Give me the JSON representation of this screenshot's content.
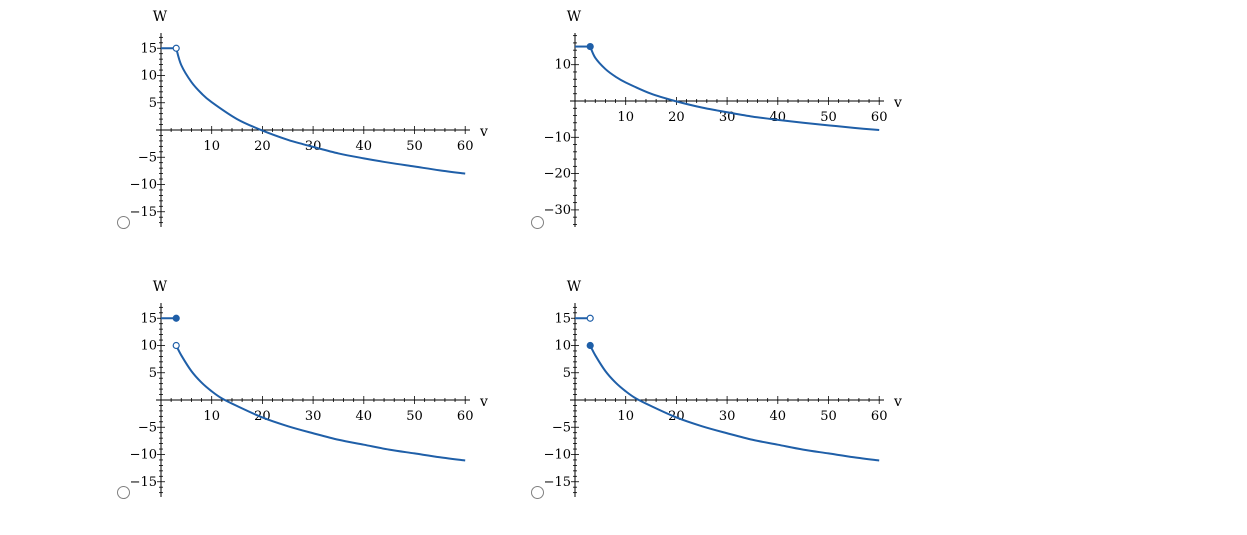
{
  "colors": {
    "curve": "#1f5fa8",
    "axis": "#000000",
    "open_fill": "#ffffff"
  },
  "options": [
    {
      "chart_data": {
        "type": "line",
        "xlabel": "v",
        "ylabel": "W",
        "xlim": [
          0,
          60
        ],
        "ylim": [
          -17,
          17
        ],
        "xticks": [
          10,
          20,
          30,
          40,
          50,
          60
        ],
        "yticks": [
          -15,
          -10,
          -5,
          5,
          10,
          15
        ],
        "series": [
          {
            "x": [
              0,
              3
            ],
            "y": [
              15,
              15
            ]
          },
          {
            "x": [
              3,
              4,
              6,
              8,
              10,
              15,
              20,
              25,
              28,
              30,
              35,
              40,
              45,
              50,
              55,
              60
            ],
            "y": [
              15,
              11.9,
              8.8,
              6.7,
              5.1,
              2.0,
              -0.1,
              -1.8,
              -2.6,
              -3.1,
              -4.3,
              -5.2,
              -6.0,
              -6.7,
              -7.4,
              -8.0
            ]
          }
        ],
        "markers": [
          {
            "x": 3,
            "y": 15,
            "fill": "open"
          }
        ]
      }
    },
    {
      "chart_data": {
        "type": "line",
        "xlabel": "v",
        "ylabel": "W",
        "xlim": [
          0,
          60
        ],
        "ylim": [
          -34,
          18
        ],
        "xticks": [
          10,
          20,
          30,
          40,
          50,
          60
        ],
        "yticks": [
          -30,
          -20,
          -10,
          10
        ],
        "series": [
          {
            "x": [
              0,
              3
            ],
            "y": [
              15,
              15
            ]
          },
          {
            "x": [
              3,
              4,
              6,
              8,
              10,
              15,
              20,
              25,
              28,
              30,
              35,
              40,
              45,
              50,
              55,
              60
            ],
            "y": [
              15,
              11.9,
              8.8,
              6.7,
              5.1,
              2.0,
              -0.1,
              -1.8,
              -2.6,
              -3.1,
              -4.3,
              -5.2,
              -6.0,
              -6.7,
              -7.4,
              -8.0
            ]
          }
        ],
        "markers": [
          {
            "x": 3,
            "y": 15,
            "fill": "filled"
          }
        ]
      }
    },
    {
      "chart_data": {
        "type": "line",
        "xlabel": "v",
        "ylabel": "W",
        "xlim": [
          0,
          60
        ],
        "ylim": [
          -17,
          17
        ],
        "xticks": [
          10,
          20,
          30,
          40,
          50,
          60
        ],
        "yticks": [
          -15,
          -10,
          -5,
          5,
          10,
          15
        ],
        "series": [
          {
            "x": [
              0,
              3
            ],
            "y": [
              15,
              15
            ]
          },
          {
            "x": [
              3,
              4,
              6,
              8,
              10,
              12,
              15,
              20,
              25,
              30,
              35,
              40,
              45,
              50,
              55,
              60
            ],
            "y": [
              10,
              8.2,
              5.3,
              3.2,
              1.6,
              0.3,
              -1.1,
              -3.2,
              -4.8,
              -6.1,
              -7.3,
              -8.2,
              -9.1,
              -9.8,
              -10.5,
              -11.1
            ]
          }
        ],
        "markers": [
          {
            "x": 3,
            "y": 15,
            "fill": "filled"
          },
          {
            "x": 3,
            "y": 10,
            "fill": "open"
          }
        ]
      }
    },
    {
      "chart_data": {
        "type": "line",
        "xlabel": "v",
        "ylabel": "W",
        "xlim": [
          0,
          60
        ],
        "ylim": [
          -17,
          17
        ],
        "xticks": [
          10,
          20,
          30,
          40,
          50,
          60
        ],
        "yticks": [
          -15,
          -10,
          -5,
          5,
          10,
          15
        ],
        "series": [
          {
            "x": [
              0,
              3
            ],
            "y": [
              15,
              15
            ]
          },
          {
            "x": [
              3,
              4,
              6,
              8,
              10,
              12,
              15,
              20,
              25,
              30,
              35,
              40,
              45,
              50,
              55,
              60
            ],
            "y": [
              10,
              8.2,
              5.3,
              3.2,
              1.6,
              0.3,
              -1.1,
              -3.2,
              -4.8,
              -6.1,
              -7.3,
              -8.2,
              -9.1,
              -9.8,
              -10.5,
              -11.1
            ]
          }
        ],
        "markers": [
          {
            "x": 3,
            "y": 15,
            "fill": "open"
          },
          {
            "x": 3,
            "y": 10,
            "fill": "filled"
          }
        ]
      }
    }
  ]
}
